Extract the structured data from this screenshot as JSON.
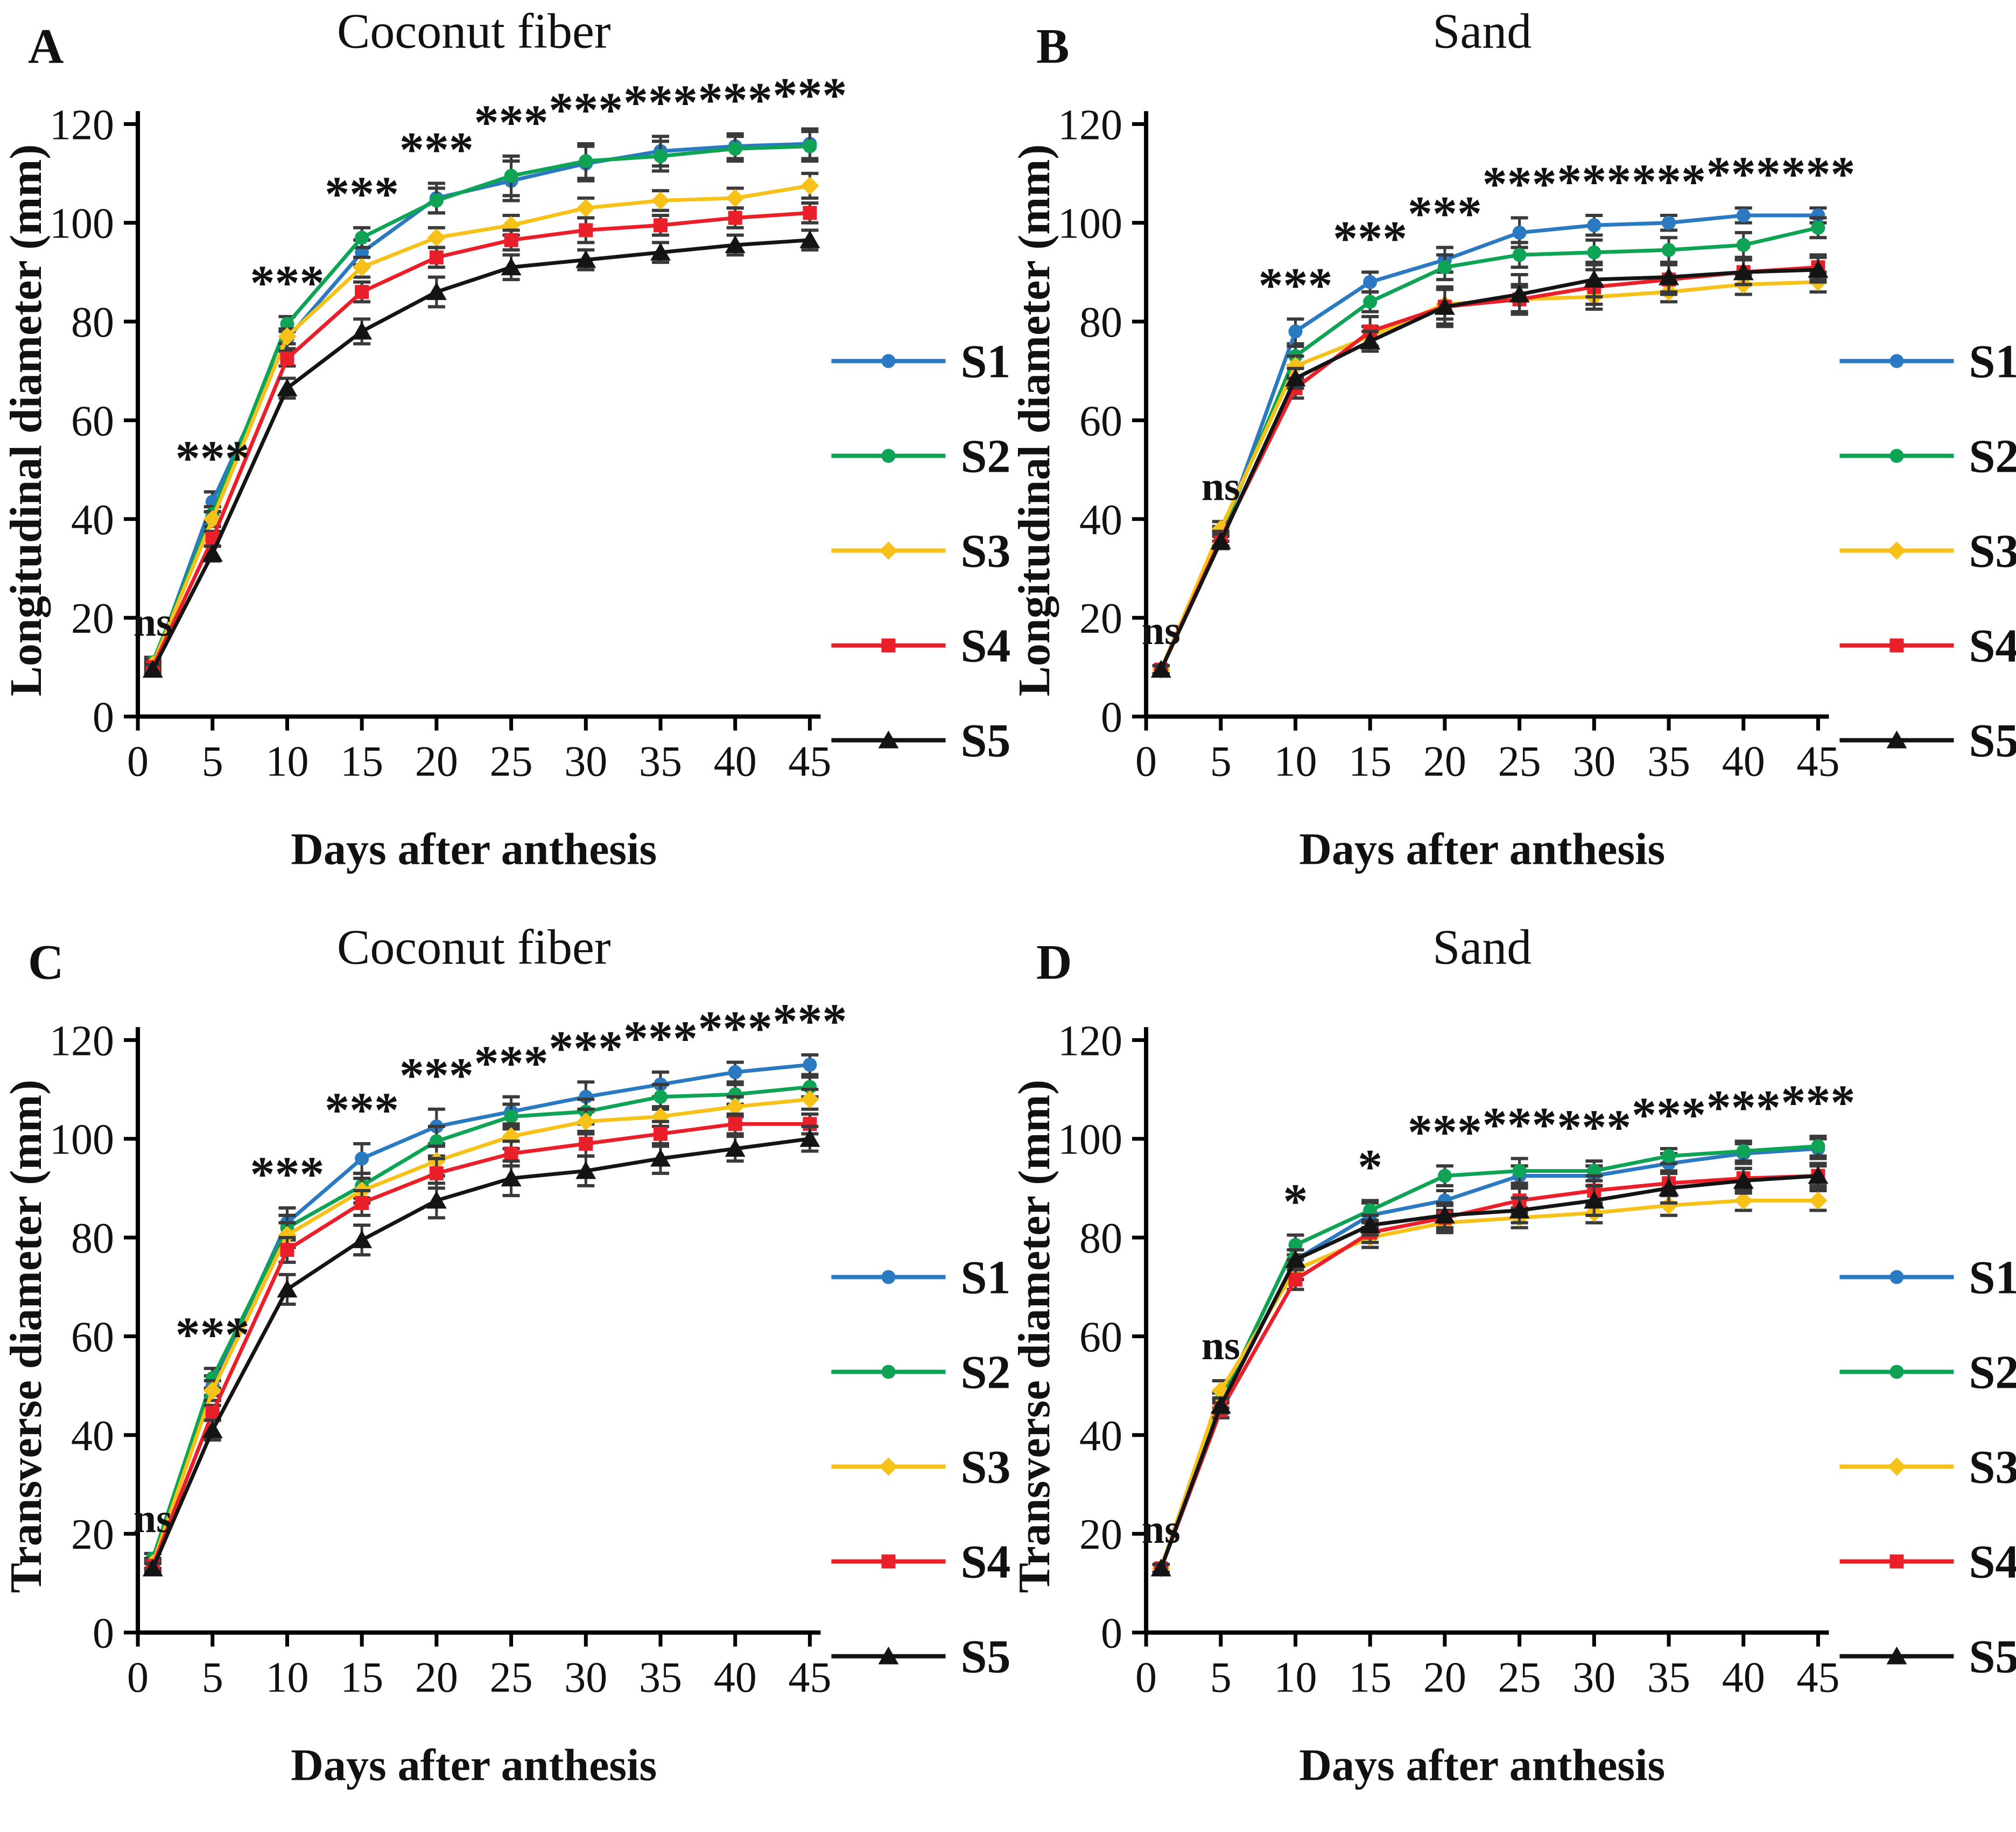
{
  "figure": {
    "description": "Four-panel line figure of fruit growth curves",
    "legend_entries": [
      "S1",
      "S2",
      "S3",
      "S4",
      "S5"
    ],
    "colors": {
      "S1": "#2b7ac1",
      "S2": "#0ea355",
      "S3": "#f6c21a",
      "S4": "#e9202a",
      "S5": "#141414",
      "error_bar": "#3a3a3a",
      "axis": "#000000"
    }
  },
  "chart_data": [
    {
      "panel": "A",
      "type": "line",
      "title": "Coconut fiber",
      "xlabel": "Days after anthesis",
      "ylabel": "Longitudinal diameter (mm)",
      "x": [
        1,
        5,
        10,
        15,
        20,
        25,
        30,
        35,
        40,
        45
      ],
      "xlim": [
        0,
        45
      ],
      "ylim": [
        0,
        120
      ],
      "xticks": [
        0,
        5,
        10,
        15,
        20,
        25,
        30,
        35,
        40,
        45
      ],
      "yticks": [
        0,
        20,
        40,
        60,
        80,
        100,
        120
      ],
      "legend_position": "right-inside",
      "grid": false,
      "series": [
        {
          "name": "S1",
          "color": "#2b7ac1",
          "marker": "circle",
          "values": [
            10,
            43.5,
            76.5,
            94,
            105,
            108.5,
            112,
            114.5,
            115.5,
            116
          ],
          "err": [
            1,
            2,
            2,
            2.5,
            3,
            4,
            3.5,
            3,
            2.5,
            3
          ]
        },
        {
          "name": "S2",
          "color": "#0ea355",
          "marker": "circle",
          "values": [
            11,
            41,
            79.5,
            97,
            104.5,
            109.5,
            112.5,
            113.5,
            115,
            115.5
          ],
          "err": [
            1,
            1.5,
            1.5,
            2,
            2.5,
            4,
            3.5,
            3,
            2.5,
            3
          ]
        },
        {
          "name": "S3",
          "color": "#f6c21a",
          "marker": "diamond",
          "values": [
            10.5,
            40,
            77,
            91,
            97,
            99.5,
            103,
            104.5,
            105,
            107.5
          ],
          "err": [
            1,
            1.5,
            1.5,
            2,
            2,
            2,
            2,
            2,
            2,
            2.5
          ]
        },
        {
          "name": "S4",
          "color": "#e9202a",
          "marker": "square",
          "values": [
            10,
            36,
            72.5,
            86,
            93,
            96.5,
            98.5,
            99.5,
            101,
            102
          ],
          "err": [
            1,
            1.5,
            1.5,
            2,
            2,
            2,
            2.5,
            2,
            2,
            2
          ]
        },
        {
          "name": "S5",
          "color": "#141414",
          "marker": "triangle",
          "values": [
            9.5,
            33,
            66.5,
            78,
            86,
            91,
            92.5,
            94,
            95.5,
            96.5
          ],
          "err": [
            1,
            1.5,
            2,
            2.5,
            3,
            2.5,
            2,
            2,
            2,
            2
          ]
        }
      ],
      "significance": [
        {
          "x": 1,
          "label": "ns"
        },
        {
          "x": 5,
          "label": "***"
        },
        {
          "x": 10,
          "label": "***"
        },
        {
          "x": 15,
          "label": "***"
        },
        {
          "x": 20,
          "label": "***"
        },
        {
          "x": 25,
          "label": "***"
        },
        {
          "x": 30,
          "label": "***"
        },
        {
          "x": 35,
          "label": "***"
        },
        {
          "x": 40,
          "label": "***"
        },
        {
          "x": 45,
          "label": "***"
        }
      ]
    },
    {
      "panel": "B",
      "type": "line",
      "title": "Sand",
      "xlabel": "Days after anthesis",
      "ylabel": "Longitudinal diameter (mm)",
      "x": [
        1,
        5,
        10,
        15,
        20,
        25,
        30,
        35,
        40,
        45
      ],
      "xlim": [
        0,
        45
      ],
      "ylim": [
        0,
        120
      ],
      "xticks": [
        0,
        5,
        10,
        15,
        20,
        25,
        30,
        35,
        40,
        45
      ],
      "yticks": [
        0,
        20,
        40,
        60,
        80,
        100,
        120
      ],
      "legend_position": "right-inside",
      "grid": false,
      "series": [
        {
          "name": "S1",
          "color": "#2b7ac1",
          "marker": "circle",
          "values": [
            9.5,
            36,
            78,
            88,
            92.5,
            98,
            99.5,
            100,
            101.5,
            101.5
          ],
          "err": [
            0.8,
            1.5,
            2.5,
            2,
            2.5,
            3,
            2,
            1.5,
            1.5,
            1.5
          ]
        },
        {
          "name": "S2",
          "color": "#0ea355",
          "marker": "circle",
          "values": [
            9.5,
            37,
            73,
            84,
            91,
            93.5,
            94,
            94.5,
            95.5,
            99
          ],
          "err": [
            0.8,
            1.5,
            2,
            2,
            2.5,
            2.5,
            2.5,
            2.5,
            2.5,
            2
          ]
        },
        {
          "name": "S3",
          "color": "#f6c21a",
          "marker": "diamond",
          "values": [
            9.5,
            38,
            71,
            77,
            83.5,
            84.5,
            85,
            86,
            87.5,
            88
          ],
          "err": [
            0.8,
            1.5,
            2,
            2,
            3,
            2.5,
            2.5,
            2,
            2,
            2
          ]
        },
        {
          "name": "S4",
          "color": "#e9202a",
          "marker": "square",
          "values": [
            9.5,
            36,
            66.5,
            78,
            83,
            84.5,
            87,
            88.5,
            90,
            91
          ],
          "err": [
            0.8,
            1.5,
            2,
            3,
            3.5,
            3,
            3.5,
            3,
            2.5,
            2.5
          ]
        },
        {
          "name": "S5",
          "color": "#141414",
          "marker": "triangle",
          "values": [
            9.5,
            35.5,
            68.5,
            76,
            83,
            85.5,
            88.5,
            89,
            90,
            90.5
          ],
          "err": [
            0.8,
            1.5,
            2,
            2,
            4,
            4,
            3.5,
            3,
            2.5,
            2.5
          ]
        }
      ],
      "significance": [
        {
          "x": 1,
          "label": "ns"
        },
        {
          "x": 5,
          "label": "ns"
        },
        {
          "x": 10,
          "label": "***"
        },
        {
          "x": 15,
          "label": "***"
        },
        {
          "x": 20,
          "label": "***"
        },
        {
          "x": 25,
          "label": "***"
        },
        {
          "x": 30,
          "label": "***"
        },
        {
          "x": 35,
          "label": "***"
        },
        {
          "x": 40,
          "label": "***"
        },
        {
          "x": 45,
          "label": "***"
        }
      ]
    },
    {
      "panel": "C",
      "type": "line",
      "title": "Coconut fiber",
      "xlabel": "Days after anthesis",
      "ylabel": "Transverse diameter (mm)",
      "x": [
        1,
        5,
        10,
        15,
        20,
        25,
        30,
        35,
        40,
        45
      ],
      "xlim": [
        0,
        45
      ],
      "ylim": [
        0,
        120
      ],
      "xticks": [
        0,
        5,
        10,
        15,
        20,
        25,
        30,
        35,
        40,
        45
      ],
      "yticks": [
        0,
        20,
        40,
        60,
        80,
        100,
        120
      ],
      "legend_position": "right-inside",
      "grid": false,
      "series": [
        {
          "name": "S1",
          "color": "#2b7ac1",
          "marker": "circle",
          "values": [
            14,
            50,
            83,
            96,
            102.5,
            105.5,
            108.5,
            111,
            113.5,
            115
          ],
          "err": [
            1,
            2,
            3,
            3,
            3.5,
            3,
            3,
            2.5,
            2,
            2
          ]
        },
        {
          "name": "S2",
          "color": "#0ea355",
          "marker": "circle",
          "values": [
            15,
            51.5,
            82,
            90.5,
            99.5,
            104.5,
            105.5,
            108.5,
            109,
            110.5
          ],
          "err": [
            1,
            2,
            2.5,
            2.5,
            3,
            2.5,
            2.5,
            2.5,
            2,
            2
          ]
        },
        {
          "name": "S3",
          "color": "#f6c21a",
          "marker": "diamond",
          "values": [
            14,
            49,
            80.5,
            89.5,
            95.5,
            100.5,
            103.5,
            104.5,
            106.5,
            108
          ],
          "err": [
            1,
            2,
            2.5,
            2.5,
            3,
            2.5,
            2.5,
            2,
            2,
            2
          ]
        },
        {
          "name": "S4",
          "color": "#e9202a",
          "marker": "square",
          "values": [
            13.5,
            44.5,
            77.5,
            87,
            93,
            97,
            99,
            101,
            103,
            103
          ],
          "err": [
            1,
            1.5,
            2.5,
            2.5,
            3,
            2.5,
            2.5,
            2.5,
            2,
            2
          ]
        },
        {
          "name": "S5",
          "color": "#141414",
          "marker": "triangle",
          "values": [
            13,
            41,
            69.5,
            79.5,
            87.5,
            92,
            93.5,
            96,
            98,
            100
          ],
          "err": [
            1,
            2,
            3,
            3,
            3.5,
            3.5,
            3,
            3,
            2.5,
            2.5
          ]
        }
      ],
      "significance": [
        {
          "x": 1,
          "label": "ns"
        },
        {
          "x": 5,
          "label": "***"
        },
        {
          "x": 10,
          "label": "***"
        },
        {
          "x": 15,
          "label": "***"
        },
        {
          "x": 20,
          "label": "***"
        },
        {
          "x": 25,
          "label": "***"
        },
        {
          "x": 30,
          "label": "***"
        },
        {
          "x": 35,
          "label": "***"
        },
        {
          "x": 40,
          "label": "***"
        },
        {
          "x": 45,
          "label": "***"
        }
      ]
    },
    {
      "panel": "D",
      "type": "line",
      "title": "Sand",
      "xlabel": "Days after anthesis",
      "ylabel": "Transverse diameter (mm)",
      "x": [
        1,
        5,
        10,
        15,
        20,
        25,
        30,
        35,
        40,
        45
      ],
      "xlim": [
        0,
        45
      ],
      "ylim": [
        0,
        120
      ],
      "xticks": [
        0,
        5,
        10,
        15,
        20,
        25,
        30,
        35,
        40,
        45
      ],
      "yticks": [
        0,
        20,
        40,
        60,
        80,
        100,
        120
      ],
      "legend_position": "right-inside",
      "grid": false,
      "series": [
        {
          "name": "S1",
          "color": "#2b7ac1",
          "marker": "circle",
          "values": [
            13,
            46,
            75.5,
            84.5,
            87.5,
            92.5,
            92.5,
            95,
            97,
            98
          ],
          "err": [
            0.8,
            1.5,
            2,
            2.5,
            2,
            2,
            2,
            2,
            2,
            2
          ]
        },
        {
          "name": "S2",
          "color": "#0ea355",
          "marker": "circle",
          "values": [
            13,
            47,
            78.5,
            85.5,
            92.5,
            93.5,
            93.5,
            96.5,
            97.5,
            98.5
          ],
          "err": [
            0.8,
            1.5,
            2,
            2,
            2,
            2.5,
            2,
            1.5,
            2,
            2
          ]
        },
        {
          "name": "S3",
          "color": "#f6c21a",
          "marker": "diamond",
          "values": [
            13,
            49,
            73.5,
            80,
            83,
            84,
            85,
            86.5,
            87.5,
            87.5
          ],
          "err": [
            0.8,
            2,
            2,
            2,
            2,
            2,
            2,
            2,
            2,
            2
          ]
        },
        {
          "name": "S4",
          "color": "#e9202a",
          "marker": "square",
          "values": [
            13,
            45,
            71.5,
            81,
            84,
            87.5,
            89.5,
            91,
            92,
            92.5
          ],
          "err": [
            0.8,
            1.5,
            2,
            2,
            2.5,
            2.5,
            3,
            2.5,
            2,
            2
          ]
        },
        {
          "name": "S5",
          "color": "#141414",
          "marker": "triangle",
          "values": [
            13,
            46,
            75.5,
            82.5,
            84.5,
            85.5,
            87.5,
            90,
            91.5,
            92.5
          ],
          "err": [
            0.8,
            1.5,
            2,
            2,
            2.5,
            2.5,
            3,
            3,
            2.5,
            2.5
          ]
        }
      ],
      "significance": [
        {
          "x": 1,
          "label": "ns"
        },
        {
          "x": 5,
          "label": "ns"
        },
        {
          "x": 10,
          "label": "*"
        },
        {
          "x": 15,
          "label": "*"
        },
        {
          "x": 20,
          "label": "***"
        },
        {
          "x": 25,
          "label": "***"
        },
        {
          "x": 30,
          "label": "***"
        },
        {
          "x": 35,
          "label": "***"
        },
        {
          "x": 40,
          "label": "***"
        },
        {
          "x": 45,
          "label": "***"
        }
      ]
    }
  ]
}
